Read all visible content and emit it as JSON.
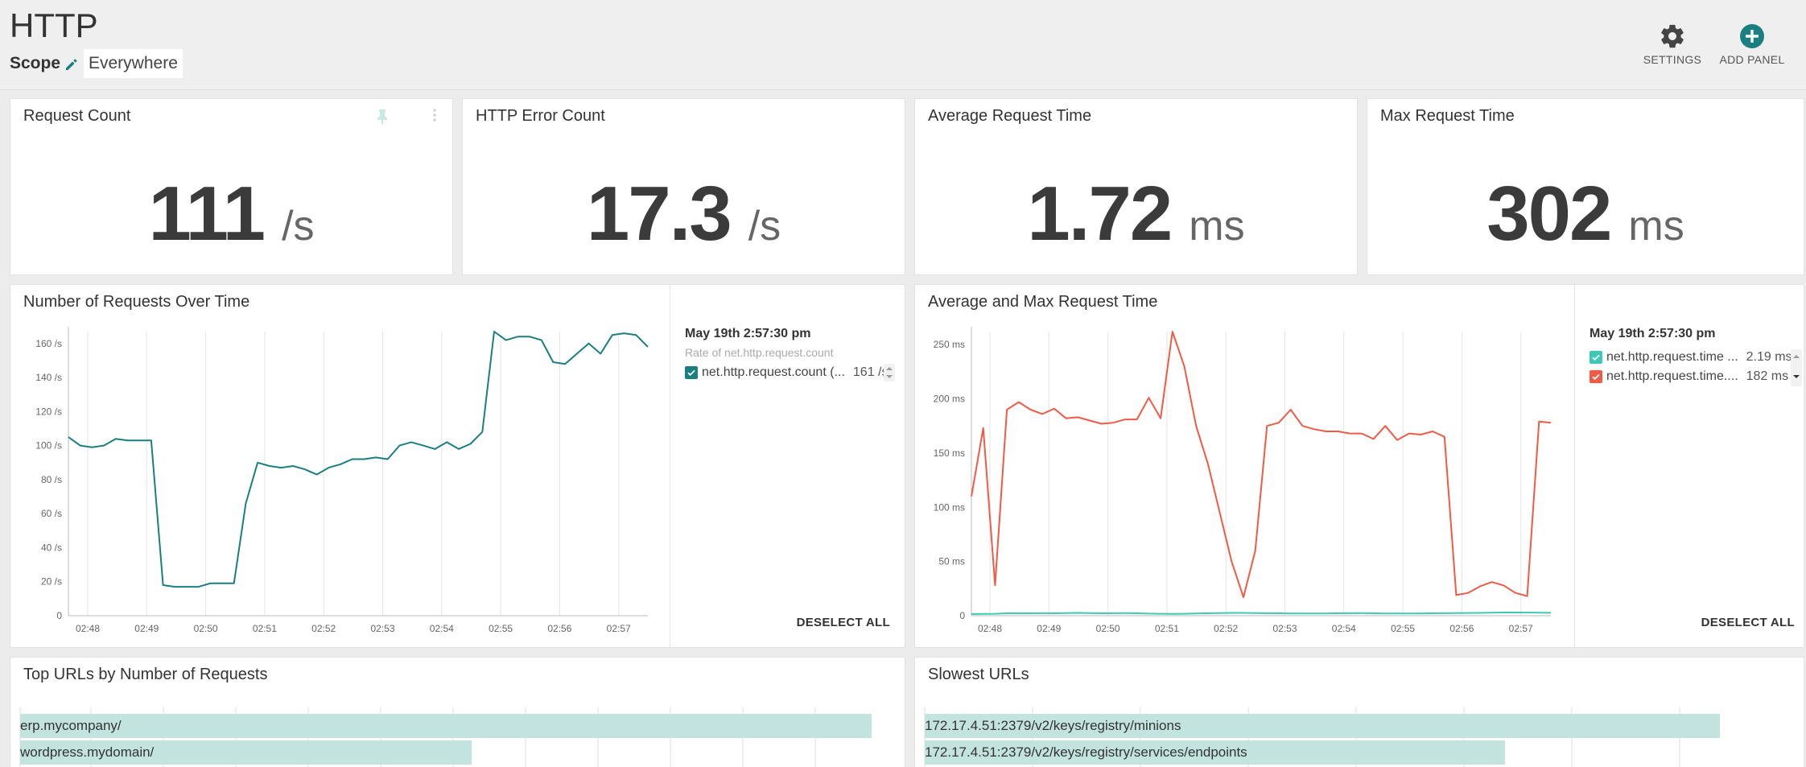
{
  "header": {
    "title": "HTTP",
    "scope_label": "Scope",
    "scope_value": "Everywhere",
    "settings_label": "SETTINGS",
    "add_panel_label": "ADD PANEL"
  },
  "colors": {
    "accent": "#1a7f80",
    "teal_light": "#3ec9b6",
    "red": "#f15a45",
    "bar_fill": "#c3e3de"
  },
  "icons": {
    "settings": "gear-icon",
    "add_panel": "plus-circle-icon",
    "scope_edit": "pencil-icon",
    "pin": "pin-icon",
    "more": "more-vertical-icon"
  },
  "stats": [
    {
      "title": "Request Count",
      "value": "111",
      "unit": "/s"
    },
    {
      "title": "HTTP Error Count",
      "value": "17.3",
      "unit": "/s"
    },
    {
      "title": "Average Request Time",
      "value": "1.72",
      "unit": "ms"
    },
    {
      "title": "Max Request Time",
      "value": "302",
      "unit": "ms"
    }
  ],
  "requests_chart": {
    "title": "Number of Requests Over Time",
    "legend_time": "May 19th 2:57:30 pm",
    "legend_sub": "Rate of net.http.request.count",
    "legend_row": {
      "name": "net.http.request.count (...",
      "value": "161 /s"
    },
    "deselect": "DESELECT ALL"
  },
  "time_chart": {
    "title": "Average and Max Request Time",
    "legend_time": "May 19th 2:57:30 pm",
    "legend_rows": [
      {
        "name": "net.http.request.time ...",
        "value": "2.19 ms"
      },
      {
        "name": "net.http.request.time....",
        "value": "182 ms"
      }
    ],
    "deselect": "DESELECT ALL"
  },
  "top_urls": {
    "title": "Top URLs by Number of Requests",
    "rows": [
      {
        "label": "erp.mycompany/",
        "fraction": 1.0
      },
      {
        "label": "wordpress.mydomain/",
        "fraction": 0.53
      }
    ]
  },
  "slowest_urls": {
    "title": "Slowest URLs",
    "rows": [
      {
        "label": "172.17.4.51:2379/v2/keys/registry/minions",
        "fraction": 1.0
      },
      {
        "label": "172.17.4.51:2379/v2/keys/registry/services/endpoints",
        "fraction": 0.73
      }
    ]
  },
  "chart_data": [
    {
      "type": "line",
      "x_ticks": [
        "02:48",
        "02:49",
        "02:50",
        "02:51",
        "02:52",
        "02:53",
        "02:54",
        "02:55",
        "02:56",
        "02:57"
      ],
      "y_ticks": [
        "0",
        "20 /s",
        "40 /s",
        "60 /s",
        "80 /s",
        "100 /s",
        "120 /s",
        "140 /s",
        "160 /s"
      ],
      "ylim": [
        0,
        167
      ],
      "grid": true,
      "series": [
        {
          "color": "#1a7f80",
          "x": [
            0.0,
            0.2,
            0.4,
            0.6,
            0.8,
            1.0,
            1.2,
            1.4,
            1.6,
            1.8,
            2.0,
            2.2,
            2.4,
            2.6,
            2.8,
            3.0,
            3.2,
            3.4,
            3.6,
            3.8,
            4.0,
            4.2,
            4.4,
            4.6,
            4.8,
            5.0,
            5.2,
            5.4,
            5.6,
            5.8,
            6.0,
            6.2,
            6.4,
            6.6,
            6.8,
            7.0,
            7.2,
            7.4,
            7.6,
            7.8,
            8.0,
            8.2,
            8.4,
            8.6,
            8.8,
            9.0,
            9.2,
            9.4,
            9.6,
            9.8
          ],
          "values": [
            105,
            100,
            99,
            100,
            104,
            103,
            103,
            103,
            18,
            17,
            17,
            17,
            19,
            19,
            19,
            66,
            90,
            88,
            87,
            88,
            86,
            83,
            87,
            89,
            92,
            92,
            93,
            92,
            100,
            102,
            100,
            98,
            102,
            98,
            101,
            108,
            167,
            162,
            164,
            164,
            162,
            149,
            148,
            154,
            160,
            154,
            165,
            166,
            165,
            158
          ]
        }
      ]
    },
    {
      "type": "line",
      "x_ticks": [
        "02:48",
        "02:49",
        "02:50",
        "02:51",
        "02:52",
        "02:53",
        "02:54",
        "02:55",
        "02:56",
        "02:57"
      ],
      "y_ticks": [
        "0",
        "50 ms",
        "100 ms",
        "150 ms",
        "200 ms",
        "250 ms"
      ],
      "ylim": [
        0,
        262
      ],
      "grid": true,
      "series": [
        {
          "color": "#3ec9b6",
          "values": [
            1.5,
            1.6,
            1.8,
            2.2,
            2.2,
            2.2,
            2.3,
            2.2,
            2.4,
            2.6,
            2.4,
            2.2,
            2.3,
            2.4,
            2.2,
            1.9,
            1.8,
            1.6,
            1.8,
            2.0,
            2.2,
            2.4,
            2.6,
            2.6,
            2.4,
            2.3,
            2.2,
            2.1,
            2.0,
            2.0,
            2.1,
            2.2,
            2.3,
            2.4,
            2.2,
            2.1,
            2.0,
            2.0,
            2.1,
            2.2,
            2.3,
            2.4,
            2.5,
            2.6,
            2.8,
            3.0,
            3.0,
            2.9,
            2.8,
            2.7
          ]
        },
        {
          "color": "#f15a45",
          "values": [
            110,
            173,
            28,
            190,
            197,
            190,
            186,
            191,
            182,
            183,
            180,
            177,
            178,
            181,
            181,
            201,
            182,
            262,
            230,
            175,
            140,
            95,
            50,
            17,
            60,
            175,
            178,
            190,
            175,
            172,
            170,
            170,
            168,
            168,
            163,
            175,
            162,
            168,
            167,
            170,
            165,
            19,
            21,
            27,
            31,
            28,
            21,
            18,
            179,
            178
          ]
        }
      ]
    }
  ]
}
